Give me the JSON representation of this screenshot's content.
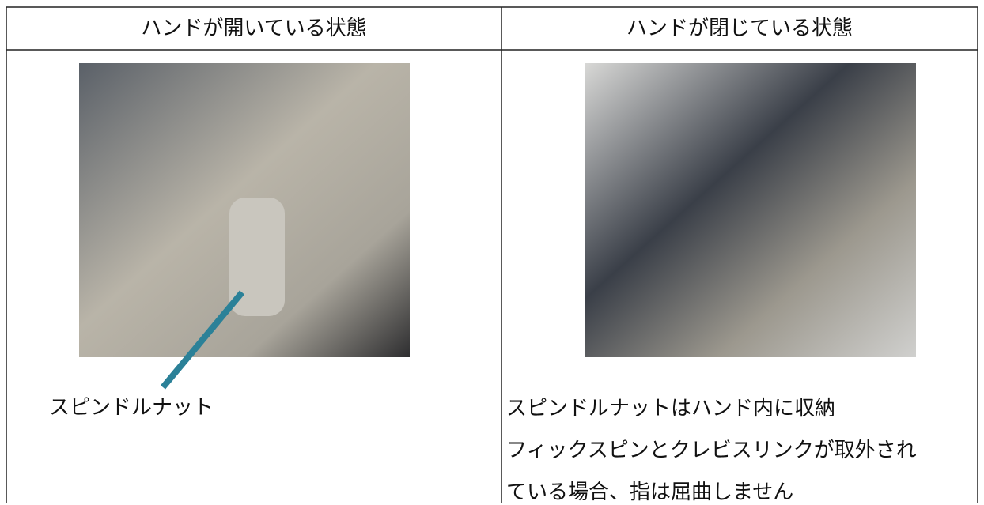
{
  "table": {
    "headers": [
      "ハンドが開いている状態",
      "ハンドが閉じている状態"
    ],
    "left_cell": {
      "label": "スピンドルナット"
    },
    "right_cell": {
      "lines": [
        "スピンドルナットはハンド内に収納",
        "フィックスピンとクレビスリンクが取外され",
        "ている場合、指は屈曲しません"
      ]
    }
  }
}
